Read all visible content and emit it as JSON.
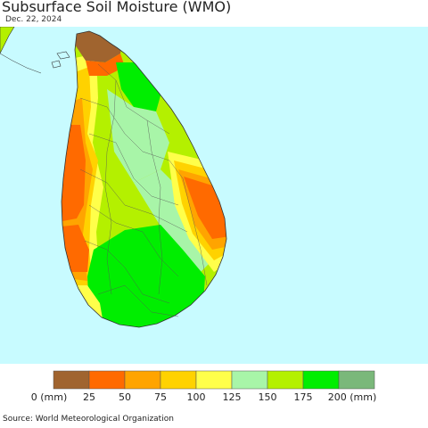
{
  "map": {
    "title": "Subsurface Soil Moisture (WMO)",
    "date": "Dec. 22, 2024",
    "ocean_color": "#c8fbff",
    "land_outline_color": "#333333"
  },
  "legend": {
    "unit_first": "0 (mm)",
    "tick_labels": [
      "25",
      "50",
      "75",
      "100",
      "125",
      "150",
      "175"
    ],
    "unit_last": "200 (mm)",
    "colors": [
      "#a0642f",
      "#ff6a00",
      "#ffa400",
      "#ffd200",
      "#ffff4a",
      "#a8f5a8",
      "#b4f000",
      "#00ee00",
      "#7ab87a"
    ]
  },
  "footer": {
    "source": "Source: World Meteorological Organization"
  }
}
